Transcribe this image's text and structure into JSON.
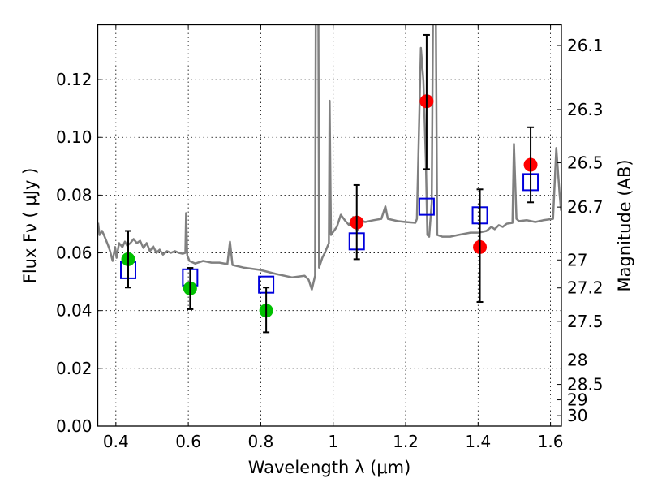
{
  "chart_data": {
    "type": "scatter",
    "title": "",
    "xlabel": "Wavelength  λ (μm)",
    "ylabel": "Flux  Fν  ( μJy )",
    "ylabel_right": "Magnitude (AB)",
    "xlim": [
      0.35,
      1.63
    ],
    "ylim": [
      0.0,
      0.139
    ],
    "grid": true,
    "x_ticks": [
      0.4,
      0.6,
      0.8,
      1.0,
      1.2,
      1.4,
      1.6
    ],
    "x_tick_labels": [
      "0.4",
      "0.6",
      "0.8",
      "1",
      "1.2",
      "1.4",
      "1.6"
    ],
    "y_ticks": [
      0.0,
      0.02,
      0.04,
      0.06,
      0.08,
      0.1,
      0.12
    ],
    "y_tick_labels": [
      "0.00",
      "0.02",
      "0.04",
      "0.06",
      "0.08",
      "0.10",
      "0.12"
    ],
    "right_ticks_mag": [
      26.1,
      26.3,
      26.5,
      26.7,
      27,
      27.2,
      27.5,
      28,
      28.5,
      29,
      30
    ],
    "right_tick_labels": [
      "26.1",
      "26.3",
      "26.5",
      "26.7",
      "27",
      "27.2",
      "27.5",
      "28",
      "28.5",
      "29",
      "30"
    ],
    "mag_zeropoint": 23.9,
    "colors": {
      "spectrum": "#808080",
      "green_points": "#00c000",
      "red_points": "#ff0000",
      "model_boxes": "#0000dd",
      "errorbars": "#000000",
      "grid": "#000000"
    },
    "series": [
      {
        "name": "model spectrum",
        "type": "line",
        "x": [
          0.351,
          0.355,
          0.362,
          0.369,
          0.378,
          0.384,
          0.391,
          0.398,
          0.402,
          0.409,
          0.418,
          0.425,
          0.431,
          0.44,
          0.449,
          0.458,
          0.467,
          0.476,
          0.485,
          0.494,
          0.503,
          0.512,
          0.521,
          0.53,
          0.541,
          0.552,
          0.563,
          0.574,
          0.585,
          0.592,
          0.594,
          0.597,
          0.603,
          0.619,
          0.641,
          0.664,
          0.686,
          0.708,
          0.715,
          0.722,
          0.753,
          0.798,
          0.842,
          0.887,
          0.921,
          0.932,
          0.941,
          0.95,
          0.952,
          0.959,
          0.961,
          0.97,
          0.977,
          0.988,
          0.99,
          0.994,
          1.01,
          1.021,
          1.032,
          1.044,
          1.055,
          1.066,
          1.077,
          1.088,
          1.111,
          1.133,
          1.144,
          1.151,
          1.178,
          1.2,
          1.227,
          1.231,
          1.242,
          1.249,
          1.256,
          1.26,
          1.265,
          1.272,
          1.276,
          1.283,
          1.287,
          1.301,
          1.323,
          1.345,
          1.379,
          1.401,
          1.423,
          1.437,
          1.446,
          1.457,
          1.468,
          1.479,
          1.495,
          1.499,
          1.506,
          1.513,
          1.535,
          1.558,
          1.58,
          1.607,
          1.616,
          1.625,
          1.629
        ],
        "y": [
          0.0704,
          0.0662,
          0.0676,
          0.0656,
          0.0628,
          0.0606,
          0.0572,
          0.062,
          0.0583,
          0.0634,
          0.062,
          0.0639,
          0.0625,
          0.0634,
          0.0648,
          0.0634,
          0.0642,
          0.0617,
          0.0634,
          0.0606,
          0.0623,
          0.06,
          0.0611,
          0.0594,
          0.0606,
          0.06,
          0.0606,
          0.06,
          0.0597,
          0.06,
          0.0738,
          0.0592,
          0.0572,
          0.0563,
          0.0572,
          0.0566,
          0.0566,
          0.0561,
          0.0639,
          0.0558,
          0.0549,
          0.0541,
          0.0527,
          0.0515,
          0.0521,
          0.0507,
          0.0473,
          0.0521,
          0.15,
          0.15,
          0.0549,
          0.0583,
          0.06,
          0.0634,
          0.1127,
          0.0662,
          0.069,
          0.0732,
          0.0713,
          0.0696,
          0.0724,
          0.0676,
          0.0713,
          0.0707,
          0.0713,
          0.0718,
          0.0761,
          0.0718,
          0.071,
          0.0707,
          0.0704,
          0.0718,
          0.131,
          0.1197,
          0.0915,
          0.0662,
          0.0656,
          0.0775,
          0.15,
          0.15,
          0.0662,
          0.0656,
          0.0656,
          0.0662,
          0.067,
          0.067,
          0.0676,
          0.069,
          0.0682,
          0.0696,
          0.069,
          0.0701,
          0.0704,
          0.0977,
          0.0718,
          0.071,
          0.0713,
          0.0707,
          0.0713,
          0.0718,
          0.0963,
          0.0803,
          0.0746
        ]
      },
      {
        "name": "model photometry",
        "type": "box",
        "x": [
          0.434,
          0.605,
          0.815,
          1.065,
          1.258,
          1.405,
          1.545
        ],
        "y": [
          0.054,
          0.0515,
          0.049,
          0.064,
          0.076,
          0.073,
          0.0845
        ]
      },
      {
        "name": "observed (green)",
        "type": "errorbar",
        "x": [
          0.434,
          0.605,
          0.815
        ],
        "y": [
          0.0578,
          0.0477,
          0.04
        ],
        "err_low": [
          0.048,
          0.0405,
          0.0325
        ],
        "err_high": [
          0.0676,
          0.0548,
          0.048
        ]
      },
      {
        "name": "observed (red)",
        "type": "errorbar",
        "x": [
          1.065,
          1.258,
          1.405,
          1.545
        ],
        "y": [
          0.0705,
          0.1125,
          0.062,
          0.0905
        ],
        "err_low": [
          0.0578,
          0.089,
          0.043,
          0.0775
        ],
        "err_high": [
          0.0835,
          0.1355,
          0.082,
          0.1035
        ]
      }
    ]
  }
}
